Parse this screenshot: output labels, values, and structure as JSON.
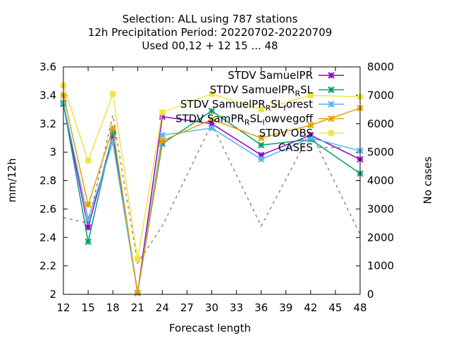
{
  "chart_data": {
    "type": "line",
    "title_lines": [
      "Selection: ALL using   787 stations",
      "12h Precipitation    Period: 20220702-20220709",
      "Used  00,12  + 12 15 ... 48"
    ],
    "xlabel": "Forecast length",
    "ylabel": "mm/12h",
    "y2label": "No cases",
    "x": [
      12,
      15,
      18,
      21,
      24,
      30,
      36,
      42,
      48
    ],
    "xticks": [
      12,
      15,
      18,
      21,
      24,
      27,
      30,
      33,
      36,
      39,
      42,
      45,
      48
    ],
    "xlim": [
      12,
      48
    ],
    "ylim": [
      2,
      3.6
    ],
    "yticks": [
      2,
      2.2,
      2.4,
      2.6,
      2.8,
      3,
      3.2,
      3.4,
      3.6
    ],
    "y2lim": [
      0,
      8000
    ],
    "y2ticks": [
      0,
      1000,
      2000,
      3000,
      4000,
      5000,
      6000,
      7000,
      8000
    ],
    "legend_position": "top-right",
    "series": [
      {
        "name": "STDV SamuelPR",
        "name_sub": "",
        "name_rest": "",
        "color": "#9400d3",
        "marker": "x",
        "values": [
          3.34,
          2.47,
          3.12,
          2.01,
          3.25,
          3.2,
          2.98,
          3.12,
          2.95
        ]
      },
      {
        "name": "STDV SamuelPR",
        "name_sub": "R",
        "name_rest": "SL",
        "color": "#009e73",
        "marker": "x",
        "values": [
          3.34,
          2.37,
          3.14,
          2.01,
          3.06,
          3.29,
          3.05,
          3.09,
          2.85
        ]
      },
      {
        "name": "STDV SamuelPR",
        "name_sub": "R",
        "name_rest": "SL",
        "name_sub2": "f",
        "name_rest2": "orest",
        "color": "#56b4e9",
        "marker": "x",
        "values": [
          3.35,
          2.53,
          3.07,
          2.01,
          3.12,
          3.17,
          2.95,
          3.1,
          3.01
        ]
      },
      {
        "name": "STDV SamPR",
        "name_sub": "R",
        "name_rest": "SL",
        "name_sub2": "l",
        "name_rest2": "owvegoff",
        "color": "#e69f00",
        "marker": "x",
        "values": [
          3.4,
          2.63,
          3.17,
          2.01,
          3.08,
          3.23,
          3.1,
          3.19,
          3.31
        ]
      },
      {
        "name": "STDV OBS",
        "name_sub": "",
        "name_rest": "",
        "color": "#f0e442",
        "marker": "square",
        "values": [
          3.47,
          2.94,
          3.41,
          2.25,
          3.28,
          3.41,
          3.3,
          3.4,
          3.39
        ]
      }
    ],
    "cases": {
      "name": "CASES",
      "color": "#888888",
      "dash": true,
      "values": [
        2700,
        2500,
        6300,
        1100,
        2400,
        6000,
        2400,
        5700,
        2100
      ]
    }
  }
}
